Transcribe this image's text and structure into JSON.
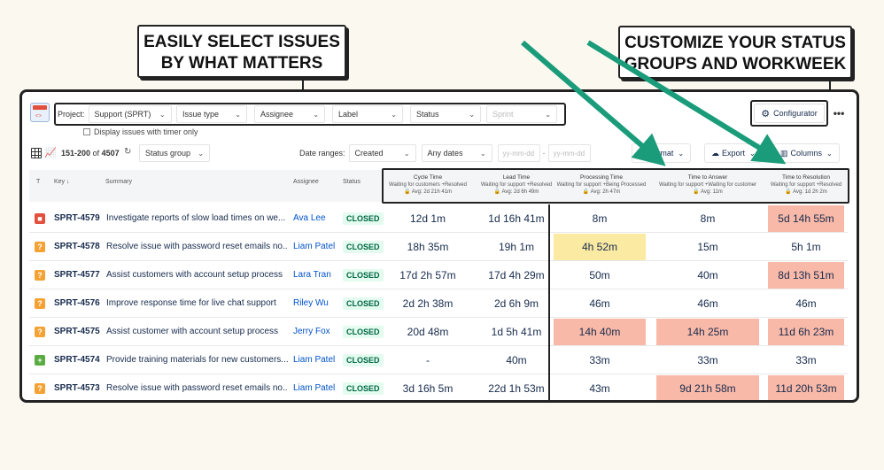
{
  "callouts": {
    "left": [
      "EASILY SELECT ISSUES",
      "BY WHAT MATTERS"
    ],
    "right": [
      "CUSTOMIZE YOUR STATUS",
      "GROUPS AND WORKWEEK"
    ]
  },
  "filters": {
    "project_label": "Project:",
    "project": "Support (SPRT)",
    "issue_type": "Issue type",
    "assignee": "Assignee",
    "label": "Label",
    "status": "Status",
    "sprint": "Sprint",
    "timer_only": "Display issues with timer only"
  },
  "header_buttons": {
    "configurator": "Configurator",
    "more": "•••"
  },
  "toolbar": {
    "range_start": "151",
    "range_end": "200",
    "of_label": "of",
    "total": "4507",
    "group": "Status group",
    "date_ranges_label": "Date ranges:",
    "date_field": "Created",
    "any_dates": "Any dates",
    "date_placeholder_1": "yy-mm-dd",
    "date_placeholder_2": "yy-mm-dd",
    "format": "Format",
    "export": "Export",
    "columns": "Columns"
  },
  "columns": {
    "type": "T",
    "key": "Key ↓",
    "summary": "Summary",
    "assignee": "Assignee",
    "status": "Status",
    "metrics": [
      {
        "title": "Cycle Time",
        "sub": "Waiting for customers +Resolved",
        "avg": "Avg: 2d 21h 41m"
      },
      {
        "title": "Lead Time",
        "sub": "Waiting for support +Resolved",
        "avg": "Avg: 2d 6h 49m"
      },
      {
        "title": "Processing Time",
        "sub": "Waiting for support +Being Processed",
        "avg": "Avg: 2h 47m"
      },
      {
        "title": "Time to Answer",
        "sub": "Waiting for support +Waiting for customer",
        "avg": "Avg: 11m"
      },
      {
        "title": "Time to Resolution",
        "sub": "Waiting for support +Resolved",
        "avg": "Avg: 1d 2h 2m"
      }
    ]
  },
  "colors": {
    "red": "#e34f3c",
    "orange": "#f5a134",
    "green": "#5bab43",
    "warn_red": "#f9b9a8",
    "warn_yellow": "#fbeaa2"
  },
  "rows": [
    {
      "type": "bug",
      "key": "SPRT-4579",
      "summary": "Investigate reports of slow load times on we...",
      "assignee": "Ava Lee",
      "status": "CLOSED",
      "m": [
        "12d 1m",
        "1d 16h 41m",
        "8m",
        "8m",
        "5d 14h 55m"
      ],
      "hl": [
        "",
        "",
        "",
        "",
        "red"
      ]
    },
    {
      "type": "question",
      "key": "SPRT-4578",
      "summary": "Resolve issue with password reset emails no...",
      "assignee": "Liam Patel",
      "status": "CLOSED",
      "m": [
        "18h 35m",
        "19h 1m",
        "4h 52m",
        "15m",
        "5h 1m"
      ],
      "hl": [
        "",
        "",
        "yellow",
        "",
        ""
      ]
    },
    {
      "type": "question",
      "key": "SPRT-4577",
      "summary": "Assist customers with account setup process",
      "assignee": "Lara Tran",
      "status": "CLOSED",
      "m": [
        "17d 2h 57m",
        "17d 4h 29m",
        "50m",
        "40m",
        "8d 13h 51m"
      ],
      "hl": [
        "",
        "",
        "",
        "",
        "red"
      ]
    },
    {
      "type": "question",
      "key": "SPRT-4576",
      "summary": "Improve response time for live chat support",
      "assignee": "Riley Wu",
      "status": "CLOSED",
      "m": [
        "2d 2h 38m",
        "2d 6h 9m",
        "46m",
        "46m",
        "46m"
      ],
      "hl": [
        "",
        "",
        "",
        "",
        ""
      ]
    },
    {
      "type": "question",
      "key": "SPRT-4575",
      "summary": "Assist customer with account setup process",
      "assignee": "Jerry Fox",
      "status": "CLOSED",
      "m": [
        "20d 48m",
        "1d 5h 41m",
        "14h 40m",
        "14h 25m",
        "11d 6h 23m"
      ],
      "hl": [
        "",
        "",
        "red",
        "red",
        "red"
      ]
    },
    {
      "type": "task",
      "key": "SPRT-4574",
      "summary": "Provide training materials for new customers...",
      "assignee": "Liam Patel",
      "status": "CLOSED",
      "m": [
        "-",
        "40m",
        "33m",
        "33m",
        "33m"
      ],
      "hl": [
        "",
        "",
        "",
        "",
        ""
      ]
    },
    {
      "type": "question",
      "key": "SPRT-4573",
      "summary": "Resolve issue with password reset emails no...",
      "assignee": "Liam Patel",
      "status": "CLOSED",
      "m": [
        "3d 16h 5m",
        "22d 1h 53m",
        "43m",
        "9d 21h 58m",
        "11d 20h 53m"
      ],
      "hl": [
        "",
        "",
        "",
        "red",
        "red"
      ]
    }
  ]
}
